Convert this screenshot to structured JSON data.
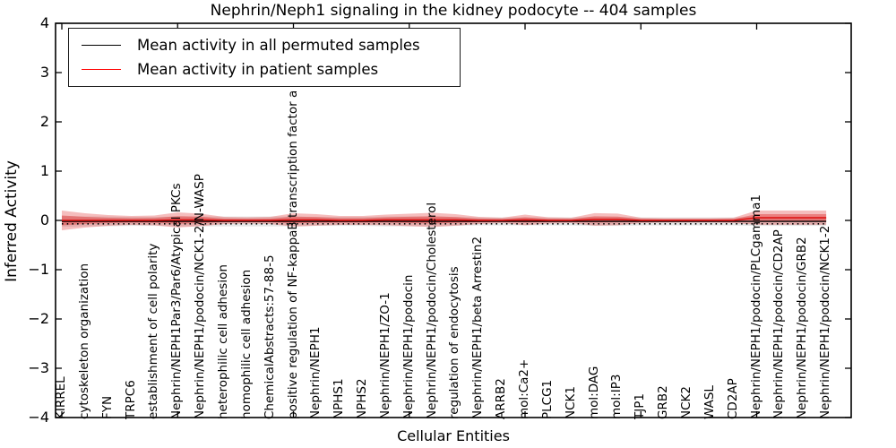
{
  "title": "Nephrin/Neph1 signaling in the kidney podocyte -- 404 samples",
  "legend": {
    "entries": [
      {
        "label": "Mean activity in all permuted samples",
        "color": "#000000"
      },
      {
        "label": "Mean activity in patient samples",
        "color": "#ff0000"
      }
    ]
  },
  "axes": {
    "ylabel": "Inferred Activity",
    "xlabel": "Cellular Entities",
    "ytick_values": [
      4,
      3,
      2,
      1,
      0,
      -1,
      -2,
      -3,
      -4
    ],
    "ytick_labels": [
      "4",
      "3",
      "2",
      "1",
      "0",
      "−1",
      "−2",
      "−3",
      "−4"
    ]
  },
  "chart_data": {
    "type": "line",
    "title": "Nephrin/Neph1 signaling in the kidney podocyte -- 404 samples",
    "xlabel": "Cellular Entities",
    "ylabel": "Inferred Activity",
    "ylim": [
      -4,
      4
    ],
    "grid": false,
    "legend_position": "upper left",
    "categories": [
      "KIRREL",
      "cytoskeleton organization",
      "FYN",
      "TRPC6",
      "establishment of cell polarity",
      "Nephrin/NEPH1Par3/Par6/Atypical PKCs",
      "Nephrin/NEPH1/podocin/NCK1-2/N-WASP",
      "heterophilic cell adhesion",
      "homophilic cell adhesion",
      "ChemicalAbstracts:57-88-5",
      "positive regulation of NF-kappaB transcription factor a",
      "Nephrin/NEPH1",
      "NPHS1",
      "NPHS2",
      "Nephrin/NEPH1/ZO-1",
      "Nephrin/NEPH1/podocin",
      "Nephrin/NEPH1/podocin/Cholesterol",
      "regulation of endocytosis",
      "Nephrin/NEPH1/beta Arrestin2",
      "ARRB2",
      "mol:Ca2+",
      "PLCG1",
      "NCK1",
      "mol:DAG",
      "mol:IP3",
      "TJP1",
      "GRB2",
      "NCK2",
      "WASL",
      "CD2AP",
      "Nephrin/NEPH1/podocin/PLCgamma1",
      "Nephrin/NEPH1/podocin/CD2AP",
      "Nephrin/NEPH1/podocin/GRB2",
      "Nephrin/NEPH1/podocin/NCK1-2"
    ],
    "series": [
      {
        "name": "Mean activity in all permuted samples",
        "color": "#000000",
        "values": [
          -0.02,
          -0.02,
          -0.02,
          -0.02,
          -0.02,
          -0.02,
          -0.02,
          -0.02,
          -0.02,
          -0.02,
          -0.02,
          -0.02,
          -0.02,
          -0.02,
          -0.02,
          -0.02,
          -0.02,
          -0.02,
          -0.02,
          -0.02,
          -0.02,
          -0.02,
          -0.02,
          -0.02,
          -0.02,
          -0.02,
          -0.02,
          -0.02,
          -0.02,
          -0.02,
          -0.02,
          -0.02,
          -0.02,
          -0.02
        ]
      },
      {
        "name": "Mean activity in patient samples",
        "color": "#e01010",
        "values": [
          0.0,
          0.0,
          0.0,
          0.0,
          0.0,
          0.01,
          0.01,
          0.0,
          0.0,
          0.0,
          0.01,
          0.01,
          0.0,
          0.0,
          0.01,
          0.01,
          0.01,
          0.01,
          0.0,
          0.0,
          0.01,
          0.0,
          0.0,
          0.02,
          0.02,
          0.0,
          0.0,
          0.0,
          0.0,
          0.0,
          0.055,
          0.055,
          0.055,
          0.055
        ]
      }
    ],
    "bands": [
      {
        "name": "permuted-samples-spread",
        "color": "#e6e6e6",
        "centers_from": 0,
        "half_widths": [
          0.109,
          0.1,
          0.1,
          0.091,
          0.091,
          0.1,
          0.1,
          0.1,
          0.1,
          0.1,
          0.1,
          0.091,
          0.091,
          0.091,
          0.1,
          0.1,
          0.1,
          0.091,
          0.082,
          0.082,
          0.082,
          0.082,
          0.082,
          0.091,
          0.091,
          0.082,
          0.082,
          0.082,
          0.082,
          0.082,
          0.091,
          0.091,
          0.091,
          0.091
        ]
      },
      {
        "name": "patient-samples-spread-outer",
        "color": "rgba(225,50,50,0.32)",
        "centers_from": 1,
        "half_widths": [
          0.2,
          0.145,
          0.109,
          0.091,
          0.1,
          0.154,
          0.127,
          0.073,
          0.064,
          0.073,
          0.136,
          0.118,
          0.091,
          0.091,
          0.109,
          0.127,
          0.145,
          0.118,
          0.073,
          0.054,
          0.109,
          0.064,
          0.054,
          0.127,
          0.118,
          0.054,
          0.045,
          0.045,
          0.045,
          0.054,
          0.145,
          0.145,
          0.145,
          0.145
        ]
      },
      {
        "name": "patient-samples-spread-inner",
        "color": "rgba(225,50,50,0.45)",
        "centers_from": 1,
        "half_widths": [
          0.1,
          0.073,
          0.054,
          0.045,
          0.05,
          0.077,
          0.064,
          0.036,
          0.032,
          0.036,
          0.068,
          0.059,
          0.045,
          0.045,
          0.054,
          0.064,
          0.073,
          0.059,
          0.036,
          0.027,
          0.054,
          0.032,
          0.027,
          0.064,
          0.059,
          0.027,
          0.023,
          0.023,
          0.023,
          0.027,
          0.073,
          0.073,
          0.073,
          0.073
        ]
      }
    ],
    "baseline_dotted": -0.07
  }
}
